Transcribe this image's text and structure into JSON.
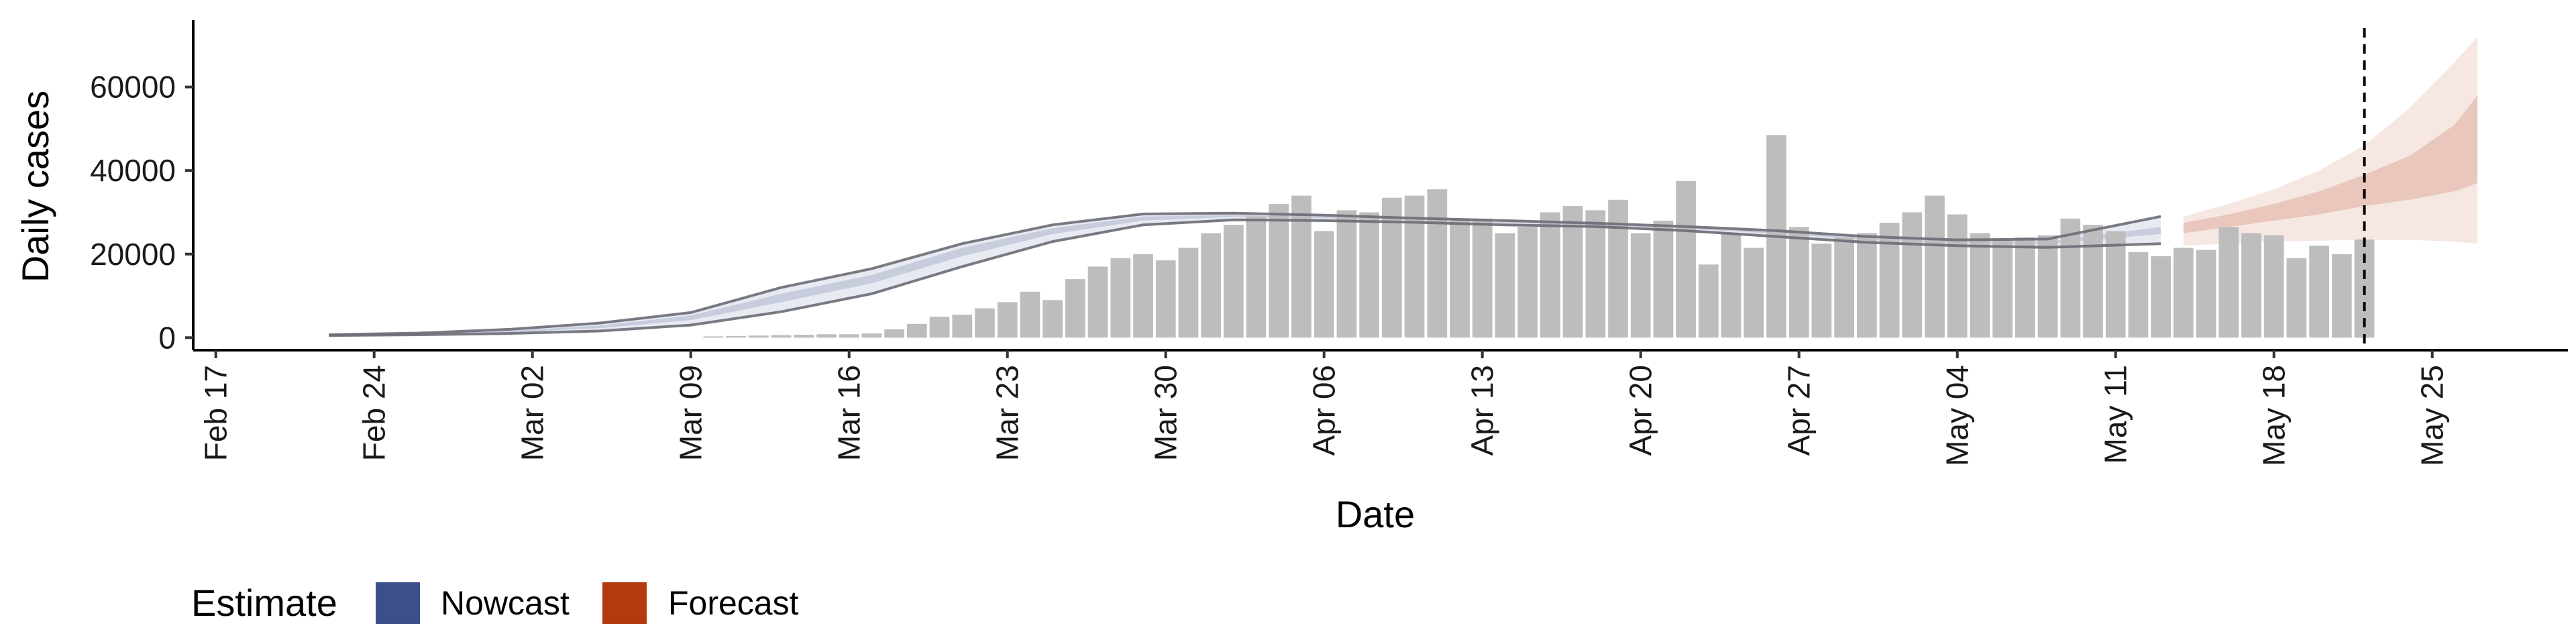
{
  "chart_data": {
    "type": "bar",
    "title": "",
    "xlabel": "Date",
    "ylabel": "Daily cases",
    "x_type": "date",
    "xlim": [
      "2020-02-16",
      "2020-05-31"
    ],
    "ylim": [
      -3000,
      76000
    ],
    "y_ticks": [
      0,
      20000,
      40000,
      60000
    ],
    "y_tick_labels": [
      "0",
      "20000",
      "40000",
      "60000"
    ],
    "x_ticks": [
      "2020-02-17",
      "2020-02-24",
      "2020-03-02",
      "2020-03-09",
      "2020-03-16",
      "2020-03-23",
      "2020-03-30",
      "2020-04-06",
      "2020-04-13",
      "2020-04-20",
      "2020-04-27",
      "2020-05-04",
      "2020-05-11",
      "2020-05-18",
      "2020-05-25"
    ],
    "x_tick_labels": [
      "Feb 17",
      "Feb 24",
      "Mar 02",
      "Mar 09",
      "Mar 16",
      "Mar 23",
      "Mar 30",
      "Apr 06",
      "Apr 13",
      "Apr 20",
      "Apr 27",
      "May 04",
      "May 11",
      "May 18",
      "May 25"
    ],
    "grid": false,
    "legend": {
      "title": "Estimate",
      "placement": "bottom-left",
      "entries": [
        {
          "label": "Nowcast",
          "color": "#3B4F8C"
        },
        {
          "label": "Forecast",
          "color": "#B33A0F"
        }
      ]
    },
    "bars": {
      "color": "#BDBDBD",
      "dates": [
        "2020-03-10",
        "2020-03-11",
        "2020-03-12",
        "2020-03-13",
        "2020-03-14",
        "2020-03-15",
        "2020-03-16",
        "2020-03-17",
        "2020-03-18",
        "2020-03-19",
        "2020-03-20",
        "2020-03-21",
        "2020-03-22",
        "2020-03-23",
        "2020-03-24",
        "2020-03-25",
        "2020-03-26",
        "2020-03-27",
        "2020-03-28",
        "2020-03-29",
        "2020-03-30",
        "2020-03-31",
        "2020-04-01",
        "2020-04-02",
        "2020-04-03",
        "2020-04-04",
        "2020-04-05",
        "2020-04-06",
        "2020-04-07",
        "2020-04-08",
        "2020-04-09",
        "2020-04-10",
        "2020-04-11",
        "2020-04-12",
        "2020-04-13",
        "2020-04-14",
        "2020-04-15",
        "2020-04-16",
        "2020-04-17",
        "2020-04-18",
        "2020-04-19",
        "2020-04-20",
        "2020-04-21",
        "2020-04-22",
        "2020-04-23",
        "2020-04-24",
        "2020-04-25",
        "2020-04-26",
        "2020-04-27",
        "2020-04-28",
        "2020-04-29",
        "2020-04-30",
        "2020-05-01",
        "2020-05-02",
        "2020-05-03",
        "2020-05-04",
        "2020-05-05",
        "2020-05-06",
        "2020-05-07",
        "2020-05-08",
        "2020-05-09",
        "2020-05-10",
        "2020-05-11",
        "2020-05-12",
        "2020-05-13",
        "2020-05-14",
        "2020-05-15",
        "2020-05-16",
        "2020-05-17",
        "2020-05-18",
        "2020-05-19",
        "2020-05-20",
        "2020-05-21",
        "2020-05-22"
      ],
      "values": [
        300,
        400,
        500,
        600,
        700,
        800,
        800,
        1000,
        2000,
        3300,
        5000,
        5500,
        7000,
        8500,
        11000,
        9000,
        14000,
        17000,
        19000,
        20000,
        18500,
        21500,
        25000,
        27000,
        29000,
        32000,
        34000,
        25500,
        30500,
        30000,
        33500,
        34000,
        35500,
        28500,
        28500,
        25000,
        26500,
        30000,
        31500,
        30500,
        33000,
        25000,
        28000,
        37500,
        17500,
        25000,
        21500,
        48500,
        26500,
        22500,
        24000,
        25000,
        27500,
        30000,
        34000,
        29500,
        25000,
        23500,
        24000,
        24500,
        28500,
        27000,
        25500,
        20500,
        19500,
        21500,
        21000,
        26500,
        25000,
        24500,
        19000,
        22000,
        20000,
        23500
      ]
    },
    "series": [
      {
        "name": "Nowcast",
        "color": "#3B4F8C",
        "dates": [
          "2020-02-22",
          "2020-02-26",
          "2020-03-01",
          "2020-03-05",
          "2020-03-09",
          "2020-03-13",
          "2020-03-17",
          "2020-03-21",
          "2020-03-25",
          "2020-03-29",
          "2020-04-02",
          "2020-04-06",
          "2020-04-10",
          "2020-04-14",
          "2020-04-18",
          "2020-04-22",
          "2020-04-26",
          "2020-04-30",
          "2020-05-04",
          "2020-05-08",
          "2020-05-13"
        ],
        "outer_lower": [
          500,
          700,
          1000,
          1600,
          3000,
          6200,
          10500,
          17000,
          23000,
          27000,
          28200,
          28000,
          27600,
          27000,
          26600,
          25600,
          24200,
          22800,
          22000,
          21600,
          22500
        ],
        "outer_upper": [
          700,
          1100,
          2000,
          3500,
          6000,
          12000,
          16500,
          22500,
          27000,
          29600,
          29800,
          29300,
          28600,
          28000,
          27400,
          26600,
          25600,
          24200,
          23400,
          23600,
          29000
        ],
        "inner_lower": [
          560,
          850,
          1300,
          2300,
          4200,
          8500,
          13000,
          19500,
          24800,
          28000,
          28900,
          28600,
          28100,
          27500,
          27000,
          26100,
          24900,
          23400,
          22600,
          22500,
          24800
        ],
        "inner_upper": [
          640,
          980,
          1650,
          2900,
          5300,
          10500,
          15000,
          21500,
          26200,
          29000,
          29300,
          28900,
          28200,
          27600,
          27100,
          26300,
          25200,
          23800,
          23000,
          23000,
          26500
        ]
      },
      {
        "name": "Forecast",
        "color": "#B33A0F",
        "dates": [
          "2020-05-14",
          "2020-05-16",
          "2020-05-18",
          "2020-05-20",
          "2020-05-22",
          "2020-05-24",
          "2020-05-26",
          "2020-05-27"
        ],
        "outer_lower": [
          22000,
          22500,
          23000,
          23200,
          23400,
          23400,
          23000,
          22500
        ],
        "outer_upper": [
          29000,
          32000,
          35500,
          40000,
          46000,
          55000,
          66000,
          72000
        ],
        "inner_lower": [
          25000,
          26500,
          28000,
          29500,
          31500,
          33000,
          35000,
          37000
        ],
        "inner_upper": [
          27500,
          29500,
          32000,
          35000,
          39000,
          43500,
          51000,
          58000
        ]
      }
    ],
    "reference_line": {
      "date": "2020-05-22",
      "style": "dashed",
      "color": "#000000"
    }
  }
}
